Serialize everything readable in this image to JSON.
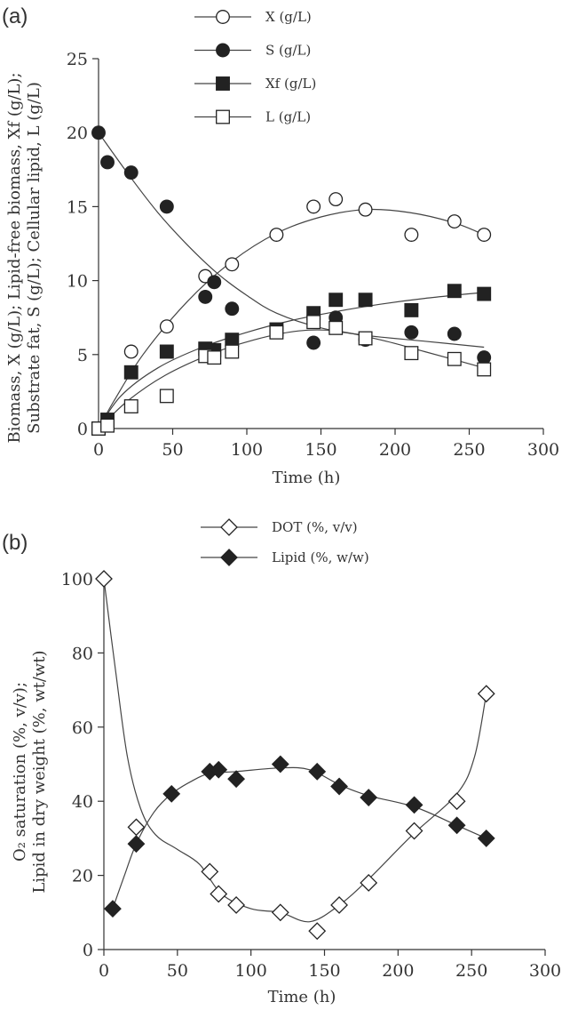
{
  "chart_data": [
    {
      "type": "scatter",
      "panel_label": "(a)",
      "xlabel": "Time (h)",
      "ylabel_lines": [
        "Biomass, X (g/L); Lipid-free biomass, Xf (g/L);",
        "Substrate fat, S (g/L); Cellular lipid, L (g/L)"
      ],
      "xlim": [
        0,
        300
      ],
      "ylim": [
        0,
        25
      ],
      "x_ticks": [
        0,
        50,
        100,
        150,
        200,
        250,
        300
      ],
      "y_ticks": [
        0,
        5,
        10,
        15,
        20,
        25
      ],
      "legend_position": "top",
      "series": [
        {
          "name": "X (g/L)",
          "marker": "circle-open",
          "points": [
            [
              0,
              0
            ],
            [
              6,
              0.5
            ],
            [
              22,
              5.2
            ],
            [
              46,
              6.9
            ],
            [
              72,
              10.3
            ],
            [
              90,
              11.1
            ],
            [
              120,
              13.1
            ],
            [
              145,
              15.0
            ],
            [
              160,
              15.5
            ],
            [
              180,
              14.8
            ],
            [
              211,
              13.1
            ],
            [
              240,
              14.0
            ],
            [
              260,
              13.1
            ]
          ],
          "fit": [
            [
              0,
              0
            ],
            [
              10,
              1.8
            ],
            [
              30,
              5.0
            ],
            [
              60,
              8.6
            ],
            [
              90,
              11.3
            ],
            [
              120,
              13.2
            ],
            [
              150,
              14.3
            ],
            [
              180,
              14.8
            ],
            [
              210,
              14.6
            ],
            [
              240,
              13.9
            ],
            [
              260,
              13.1
            ]
          ]
        },
        {
          "name": "S (g/L)",
          "marker": "circle-filled",
          "points": [
            [
              0,
              20.0
            ],
            [
              6,
              18.0
            ],
            [
              22,
              17.3
            ],
            [
              46,
              15.0
            ],
            [
              72,
              8.9
            ],
            [
              78,
              9.9
            ],
            [
              90,
              8.1
            ],
            [
              145,
              5.8
            ],
            [
              160,
              7.5
            ],
            [
              180,
              6.0
            ],
            [
              211,
              6.5
            ],
            [
              240,
              6.4
            ],
            [
              260,
              4.8
            ]
          ],
          "fit": [
            [
              0,
              20.0
            ],
            [
              20,
              17.2
            ],
            [
              40,
              14.6
            ],
            [
              60,
              12.4
            ],
            [
              80,
              10.5
            ],
            [
              100,
              9.0
            ],
            [
              120,
              7.8
            ],
            [
              150,
              6.8
            ],
            [
              180,
              6.3
            ],
            [
              220,
              5.9
            ],
            [
              260,
              5.5
            ]
          ]
        },
        {
          "name": "Xf (g/L)",
          "marker": "square-filled",
          "points": [
            [
              0,
              0
            ],
            [
              6,
              0.6
            ],
            [
              22,
              3.8
            ],
            [
              46,
              5.2
            ],
            [
              72,
              5.4
            ],
            [
              78,
              5.3
            ],
            [
              90,
              6.0
            ],
            [
              120,
              6.7
            ],
            [
              145,
              7.8
            ],
            [
              160,
              8.7
            ],
            [
              180,
              8.7
            ],
            [
              211,
              8.0
            ],
            [
              240,
              9.3
            ],
            [
              260,
              9.1
            ]
          ],
          "fit": [
            [
              0,
              0
            ],
            [
              15,
              2.2
            ],
            [
              40,
              4.1
            ],
            [
              70,
              5.5
            ],
            [
              100,
              6.5
            ],
            [
              130,
              7.3
            ],
            [
              160,
              7.9
            ],
            [
              190,
              8.4
            ],
            [
              220,
              8.8
            ],
            [
              260,
              9.2
            ]
          ]
        },
        {
          "name": "L (g/L)",
          "marker": "square-open",
          "points": [
            [
              0,
              0
            ],
            [
              6,
              0.2
            ],
            [
              22,
              1.5
            ],
            [
              46,
              2.2
            ],
            [
              72,
              4.9
            ],
            [
              78,
              4.8
            ],
            [
              90,
              5.2
            ],
            [
              120,
              6.5
            ],
            [
              145,
              7.2
            ],
            [
              160,
              6.8
            ],
            [
              180,
              6.1
            ],
            [
              211,
              5.1
            ],
            [
              240,
              4.7
            ],
            [
              260,
              4.0
            ]
          ],
          "fit": [
            [
              0,
              0
            ],
            [
              20,
              1.9
            ],
            [
              45,
              3.6
            ],
            [
              75,
              5.0
            ],
            [
              105,
              6.0
            ],
            [
              135,
              6.6
            ],
            [
              160,
              6.6
            ],
            [
              190,
              6.0
            ],
            [
              220,
              5.2
            ],
            [
              260,
              4.1
            ]
          ]
        }
      ]
    },
    {
      "type": "scatter",
      "panel_label": "(b)",
      "xlabel": "Time (h)",
      "ylabel_lines": [
        "O₂ saturation (%, v/v);",
        "Lipid in dry weight (%, wt/wt)"
      ],
      "xlim": [
        0,
        300
      ],
      "ylim": [
        0,
        100
      ],
      "x_ticks": [
        0,
        50,
        100,
        150,
        200,
        250,
        300
      ],
      "y_ticks": [
        0,
        20,
        40,
        60,
        80,
        100
      ],
      "legend_position": "top",
      "series": [
        {
          "name": "DOT (%, v/v)",
          "marker": "diamond-open",
          "points": [
            [
              0,
              100
            ],
            [
              22,
              33
            ],
            [
              72,
              21
            ],
            [
              78,
              15
            ],
            [
              90,
              12
            ],
            [
              120,
              10
            ],
            [
              145,
              5
            ],
            [
              160,
              12
            ],
            [
              180,
              18
            ],
            [
              211,
              32
            ],
            [
              240,
              40
            ],
            [
              260,
              69
            ]
          ],
          "fit": [
            [
              0,
              100
            ],
            [
              8,
              75
            ],
            [
              16,
              52
            ],
            [
              25,
              38
            ],
            [
              35,
              31
            ],
            [
              50,
              27
            ],
            [
              65,
              23
            ],
            [
              80,
              15
            ],
            [
              100,
              11
            ],
            [
              120,
              10
            ],
            [
              140,
              7.5
            ],
            [
              160,
              12
            ],
            [
              180,
              19
            ],
            [
              210,
              31
            ],
            [
              240,
              42
            ],
            [
              252,
              52
            ],
            [
              260,
              69
            ]
          ]
        },
        {
          "name": "Lipid (%, w/w)",
          "marker": "diamond-filled",
          "points": [
            [
              6,
              11
            ],
            [
              22,
              28.5
            ],
            [
              46,
              42
            ],
            [
              72,
              48
            ],
            [
              78,
              48.5
            ],
            [
              90,
              46
            ],
            [
              120,
              50
            ],
            [
              145,
              48
            ],
            [
              160,
              44
            ],
            [
              180,
              41
            ],
            [
              211,
              39
            ],
            [
              240,
              33.5
            ],
            [
              260,
              30
            ]
          ],
          "fit": [
            [
              6,
              11
            ],
            [
              14,
              20
            ],
            [
              22,
              28.5
            ],
            [
              34,
              37
            ],
            [
              46,
              42
            ],
            [
              60,
              45.5
            ],
            [
              72,
              47.5
            ],
            [
              90,
              48
            ],
            [
              120,
              49
            ],
            [
              140,
              48.5
            ],
            [
              160,
              44.5
            ],
            [
              180,
              41.5
            ],
            [
              211,
              38.5
            ],
            [
              240,
              33.5
            ],
            [
              260,
              30
            ]
          ]
        }
      ]
    }
  ]
}
